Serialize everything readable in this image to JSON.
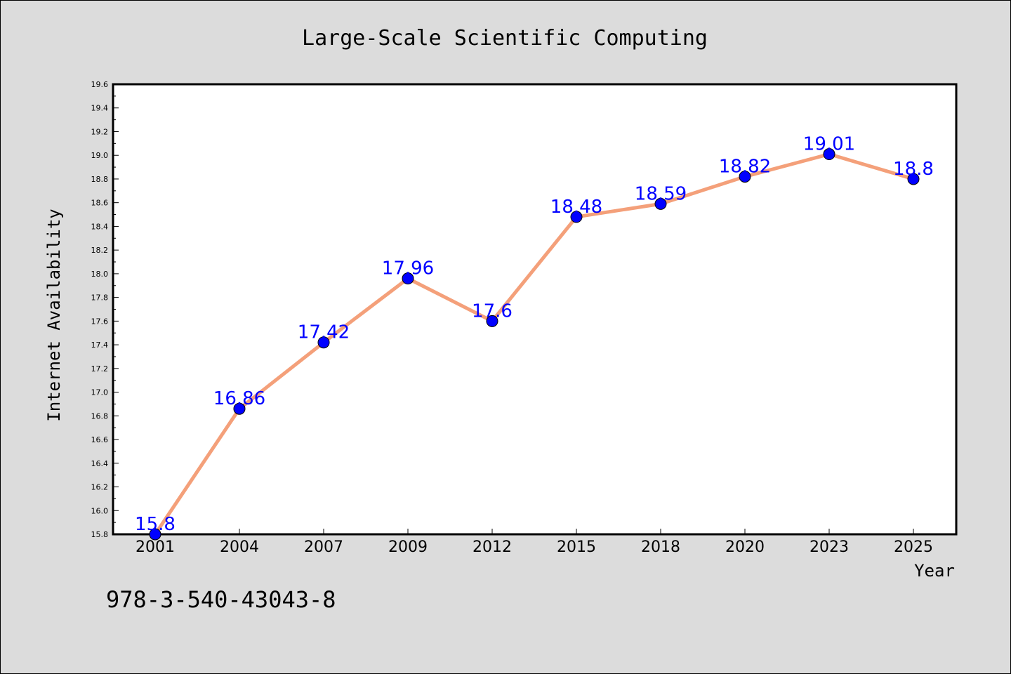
{
  "chart_data": {
    "type": "line",
    "title": "Large-Scale Scientific Computing",
    "xlabel": "Year",
    "ylabel": "Internet Availability",
    "categories": [
      "2001",
      "2004",
      "2007",
      "2009",
      "2012",
      "2015",
      "2018",
      "2020",
      "2023",
      "2025"
    ],
    "series": [
      {
        "values": [
          15.8,
          16.86,
          17.42,
          17.96,
          17.6,
          18.48,
          18.59,
          18.82,
          19.01,
          18.8
        ]
      }
    ],
    "data_labels": [
      "15.8",
      "16.86",
      "17.42",
      "17.96",
      "17.6",
      "18.48",
      "18.59",
      "18.82",
      "19.01",
      "18.8"
    ],
    "ylim": [
      15.8,
      19.6
    ],
    "yticks": [
      "15.8",
      "16.0",
      "16.2",
      "16.4",
      "16.6",
      "16.8",
      "17.0",
      "17.2",
      "17.4",
      "17.6",
      "17.8",
      "18.0",
      "18.2",
      "18.4",
      "18.6",
      "18.8",
      "19.0",
      "19.2",
      "19.4",
      "19.6"
    ],
    "grid": false,
    "line_color": "#f4a07a",
    "marker_color": "#0000ff",
    "label_color": "#0000ff"
  },
  "footnote": "978-3-540-43043-8"
}
